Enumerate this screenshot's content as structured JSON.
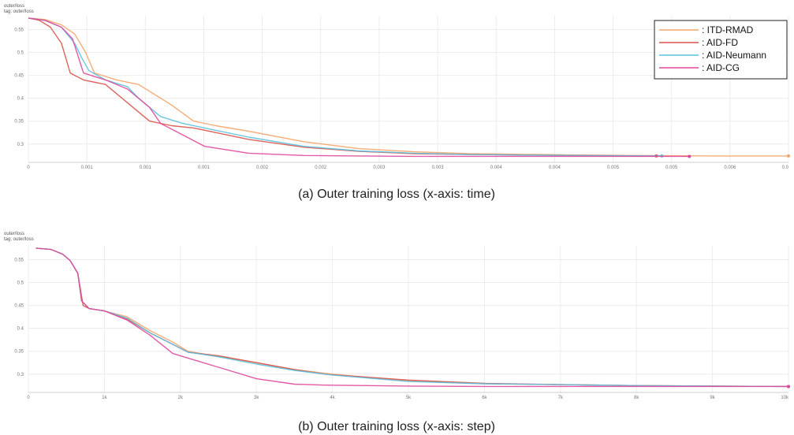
{
  "panels": [
    {
      "header": "outer/loss",
      "tag": "tag: outer/loss",
      "caption": "(a) Outer training loss (x-axis: time)",
      "yticks": [
        "0.55",
        "0.5",
        "0.45",
        "0.4",
        "0.35",
        "0.3"
      ],
      "xticks": [
        "0",
        "0.001",
        "0.001",
        "0.001",
        "0.002",
        "0.002",
        "0.003",
        "0.003",
        "0.004",
        "0.004",
        "0.005",
        "0.005",
        "0.006",
        "0.0"
      ],
      "legend": [
        {
          "label": ": ITD-RMAD",
          "color": "#f4a46a"
        },
        {
          "label": ": AID-FD",
          "color": "#d9534a"
        },
        {
          "label": ": AID-Neumann",
          "color": "#5bc0de"
        },
        {
          "label": ": AID-CG",
          "color": "#e0489c"
        }
      ]
    },
    {
      "header": "outer/loss",
      "tag": "tag: outer/loss",
      "caption": "(b) Outer training loss (x-axis: step)",
      "yticks": [
        "0.55",
        "0.5",
        "0.45",
        "0.4",
        "0.35",
        "0.3"
      ],
      "xticks": [
        "0",
        "1k",
        "2k",
        "3k",
        "4k",
        "5k",
        "6k",
        "7k",
        "8k",
        "9k",
        "10k"
      ]
    }
  ],
  "chart_data": [
    {
      "type": "line",
      "xlabel": "time",
      "ylabel": "",
      "xlim": [
        0,
        0.0069
      ],
      "ylim": [
        0.26,
        0.58
      ],
      "grid": true,
      "legend_position": "top-right",
      "series": [
        {
          "name": "ITD-RMAD",
          "color": "#f4a46a",
          "x": [
            0,
            0.00015,
            0.0003,
            0.00042,
            0.00052,
            0.0006,
            0.0008,
            0.001,
            0.0012,
            0.0013,
            0.0015,
            0.0017,
            0.002,
            0.0025,
            0.003,
            0.0035,
            0.004,
            0.005,
            0.0055,
            0.0062,
            0.0069
          ],
          "y": [
            0.575,
            0.572,
            0.56,
            0.54,
            0.5,
            0.455,
            0.44,
            0.43,
            0.4,
            0.385,
            0.35,
            0.34,
            0.328,
            0.305,
            0.29,
            0.283,
            0.279,
            0.276,
            0.275,
            0.274,
            0.274
          ]
        },
        {
          "name": "AID-FD",
          "color": "#d9534a",
          "x": [
            0,
            0.0001,
            0.0002,
            0.0003,
            0.00038,
            0.0005,
            0.0007,
            0.0009,
            0.0011,
            0.0013,
            0.0015,
            0.0017,
            0.002,
            0.0025,
            0.003,
            0.0035,
            0.004,
            0.005,
            0.0057
          ],
          "y": [
            0.575,
            0.57,
            0.555,
            0.52,
            0.455,
            0.44,
            0.43,
            0.39,
            0.35,
            0.34,
            0.335,
            0.325,
            0.31,
            0.293,
            0.284,
            0.279,
            0.277,
            0.275,
            0.274
          ]
        },
        {
          "name": "AID-Neumann",
          "color": "#5bc0de",
          "x": [
            0,
            0.00015,
            0.0003,
            0.00042,
            0.00048,
            0.00055,
            0.0007,
            0.0009,
            0.001,
            0.0012,
            0.0014,
            0.0016,
            0.002,
            0.0025,
            0.003,
            0.0035,
            0.004,
            0.005,
            0.00575
          ],
          "y": [
            0.575,
            0.57,
            0.555,
            0.52,
            0.49,
            0.46,
            0.44,
            0.425,
            0.4,
            0.36,
            0.345,
            0.335,
            0.315,
            0.295,
            0.285,
            0.28,
            0.277,
            0.275,
            0.274
          ]
        },
        {
          "name": "AID-CG",
          "color": "#e0489c",
          "x": [
            0,
            0.00015,
            0.0003,
            0.0004,
            0.0005,
            0.0007,
            0.0009,
            0.0011,
            0.0012,
            0.0014,
            0.0016,
            0.002,
            0.0025,
            0.003,
            0.0035,
            0.004,
            0.005,
            0.006
          ],
          "y": [
            0.575,
            0.57,
            0.555,
            0.53,
            0.455,
            0.44,
            0.42,
            0.38,
            0.345,
            0.32,
            0.295,
            0.28,
            0.275,
            0.274,
            0.273,
            0.273,
            0.273,
            0.273
          ]
        }
      ]
    },
    {
      "type": "line",
      "xlabel": "step",
      "ylabel": "",
      "xlim": [
        0,
        10000
      ],
      "ylim": [
        0.26,
        0.58
      ],
      "grid": true,
      "series": [
        {
          "name": "ITD-RMAD",
          "color": "#f4a46a",
          "x": [
            100,
            300,
            450,
            550,
            650,
            700,
            800,
            1000,
            1300,
            1600,
            1900,
            2100,
            2500,
            3000,
            3500,
            4000,
            5000,
            6000,
            7000,
            8000,
            9000,
            10000
          ],
          "y": [
            0.575,
            0.572,
            0.562,
            0.548,
            0.52,
            0.46,
            0.443,
            0.438,
            0.425,
            0.395,
            0.37,
            0.35,
            0.338,
            0.325,
            0.31,
            0.3,
            0.285,
            0.279,
            0.277,
            0.275,
            0.274,
            0.273
          ]
        },
        {
          "name": "AID-FD",
          "color": "#d9534a",
          "x": [
            100,
            300,
            450,
            550,
            650,
            720,
            800,
            1000,
            1300,
            1600,
            1900,
            2100,
            2500,
            3000,
            3500,
            3900,
            5000,
            6000,
            7000,
            8000,
            9000,
            10000
          ],
          "y": [
            0.575,
            0.572,
            0.562,
            0.548,
            0.52,
            0.45,
            0.443,
            0.438,
            0.42,
            0.39,
            0.365,
            0.348,
            0.34,
            0.325,
            0.31,
            0.3,
            0.287,
            0.28,
            0.277,
            0.275,
            0.274,
            0.273
          ]
        },
        {
          "name": "AID-Neumann",
          "color": "#5bc0de",
          "x": [
            100,
            300,
            450,
            550,
            650,
            700,
            800,
            1000,
            1300,
            1600,
            1900,
            2100,
            2500,
            3000,
            3500,
            4000,
            5000,
            6000,
            7000,
            8000,
            9000,
            10000
          ],
          "y": [
            0.575,
            0.572,
            0.562,
            0.548,
            0.52,
            0.46,
            0.443,
            0.438,
            0.422,
            0.39,
            0.365,
            0.348,
            0.338,
            0.322,
            0.308,
            0.298,
            0.284,
            0.279,
            0.277,
            0.275,
            0.274,
            0.273
          ]
        },
        {
          "name": "AID-CG",
          "color": "#e0489c",
          "x": [
            100,
            300,
            450,
            550,
            650,
            700,
            800,
            1000,
            1300,
            1600,
            1900,
            2100,
            2500,
            3000,
            3500,
            3900,
            5000,
            6000,
            7000,
            8000,
            9000,
            10000
          ],
          "y": [
            0.575,
            0.572,
            0.562,
            0.548,
            0.52,
            0.46,
            0.443,
            0.438,
            0.418,
            0.385,
            0.345,
            0.335,
            0.315,
            0.29,
            0.278,
            0.276,
            0.274,
            0.273,
            0.273,
            0.273,
            0.273,
            0.273
          ]
        }
      ]
    }
  ]
}
